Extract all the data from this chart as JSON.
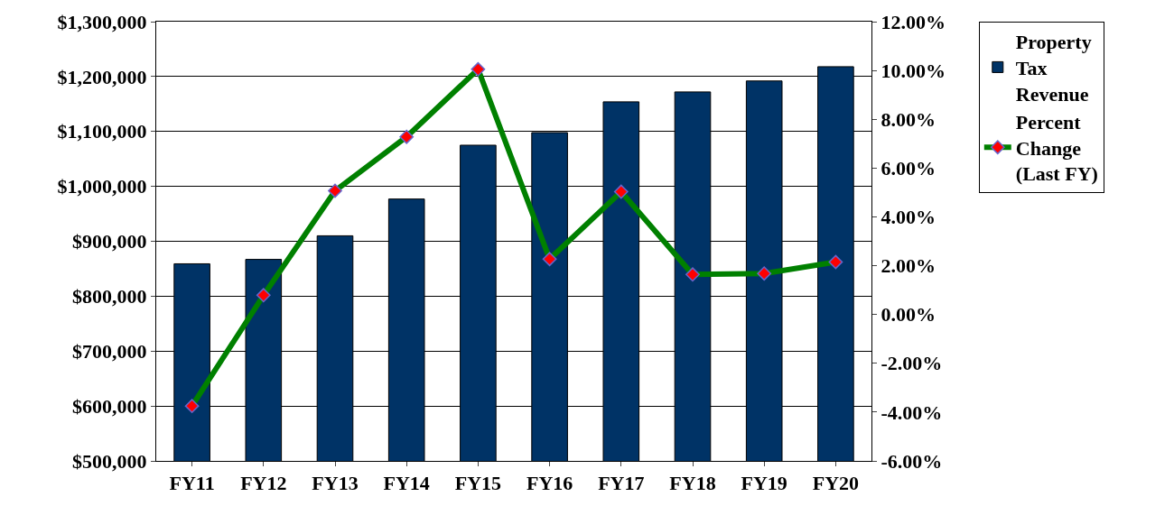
{
  "chart_data": {
    "type": "bar",
    "categories": [
      "FY11",
      "FY12",
      "FY13",
      "FY14",
      "FY15",
      "FY16",
      "FY17",
      "FY18",
      "FY19",
      "FY20"
    ],
    "series": [
      {
        "name": "Property Tax Revenue",
        "color": "#003366",
        "values": [
          859000,
          867000,
          910000,
          977000,
          1075000,
          1098000,
          1154000,
          1172000,
          1192000,
          1218000
        ]
      },
      {
        "name": "Percent Change (Last FY)",
        "type": "line",
        "axis": "y2",
        "color": "#008000",
        "marker": "diamond",
        "values": [
          -3.75,
          0.79,
          5.07,
          7.28,
          10.05,
          2.27,
          5.03,
          1.64,
          1.68,
          2.15
        ]
      }
    ],
    "ylim": [
      500000,
      1300000
    ],
    "yticks": [
      {
        "value": 500000,
        "label": "$500,000"
      },
      {
        "value": 600000,
        "label": "$600,000"
      },
      {
        "value": 700000,
        "label": "$700,000"
      },
      {
        "value": 800000,
        "label": "$800,000"
      },
      {
        "value": 900000,
        "label": "$900,000"
      },
      {
        "value": 1000000,
        "label": "$1,000,000"
      },
      {
        "value": 1100000,
        "label": "$1,100,000"
      },
      {
        "value": 1200000,
        "label": "$1,200,000"
      },
      {
        "value": 1300000,
        "label": "$1,300,000"
      }
    ],
    "y2lim": [
      -6,
      12
    ],
    "y2ticks": [
      {
        "value": -6,
        "label": "-6.00%"
      },
      {
        "value": -4,
        "label": "-4.00%"
      },
      {
        "value": -2,
        "label": "-2.00%"
      },
      {
        "value": 0,
        "label": "0.00%"
      },
      {
        "value": 2,
        "label": "2.00%"
      },
      {
        "value": 4,
        "label": "4.00%"
      },
      {
        "value": 6,
        "label": "6.00%"
      },
      {
        "value": 8,
        "label": "8.00%"
      },
      {
        "value": 10,
        "label": "10.00%"
      },
      {
        "value": 12,
        "label": "12.00%"
      }
    ],
    "grid": "y",
    "legend": "top right"
  }
}
